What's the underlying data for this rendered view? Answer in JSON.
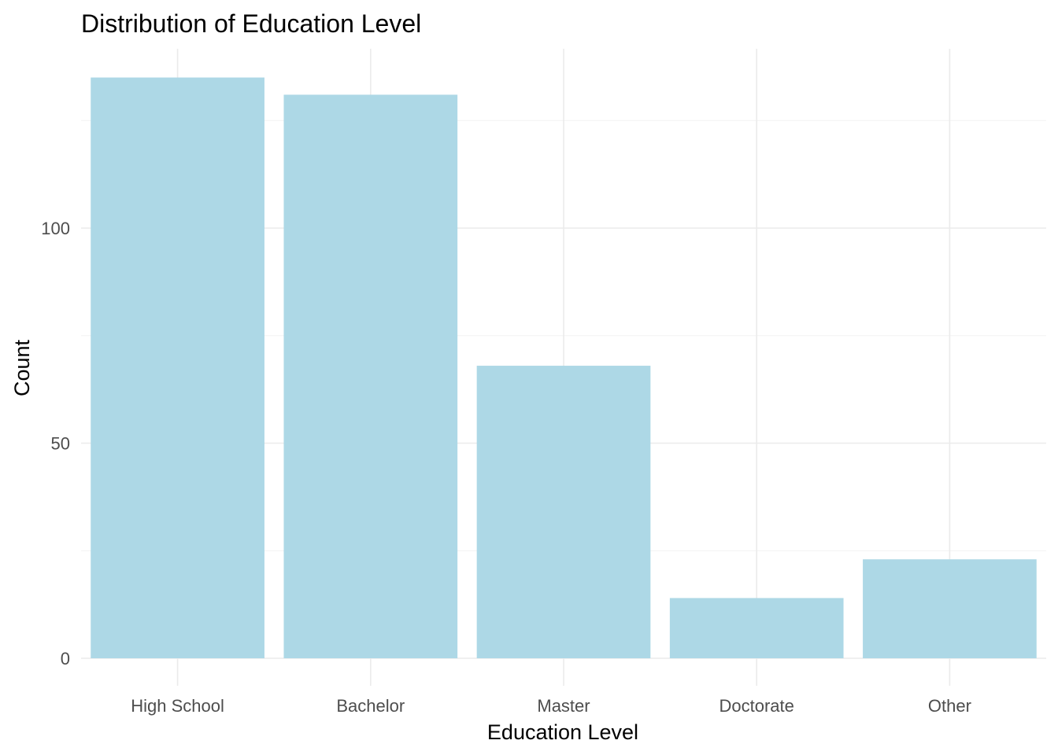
{
  "chart_data": {
    "type": "bar",
    "title": "Distribution of Education Level",
    "xlabel": "Education Level",
    "ylabel": "Count",
    "categories": [
      "High School",
      "Bachelor",
      "Master",
      "Doctorate",
      "Other"
    ],
    "values": [
      135,
      131,
      68,
      14,
      23
    ],
    "ylim": [
      0,
      142
    ],
    "yticks": [
      0,
      50,
      100
    ],
    "bar_color": "#add8e6",
    "grid": true,
    "legend": "none"
  }
}
